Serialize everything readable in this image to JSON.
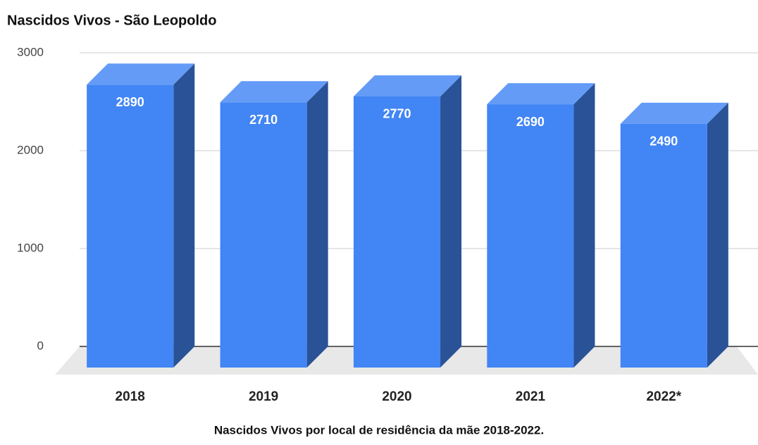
{
  "chart_data": {
    "type": "bar3d",
    "title": "Nascidos Vivos - São Leopoldo",
    "x_label": "Nascidos Vivos por local de residência da mãe 2018-2022.",
    "categories": [
      "2018",
      "2019",
      "2020",
      "2021",
      "2022*"
    ],
    "values": [
      2890,
      2710,
      2770,
      2690,
      2490
    ],
    "color": "#4285f4",
    "ylim": [
      0,
      3000
    ],
    "yticks": [
      0,
      1000,
      2000,
      3000
    ],
    "grid": true
  }
}
